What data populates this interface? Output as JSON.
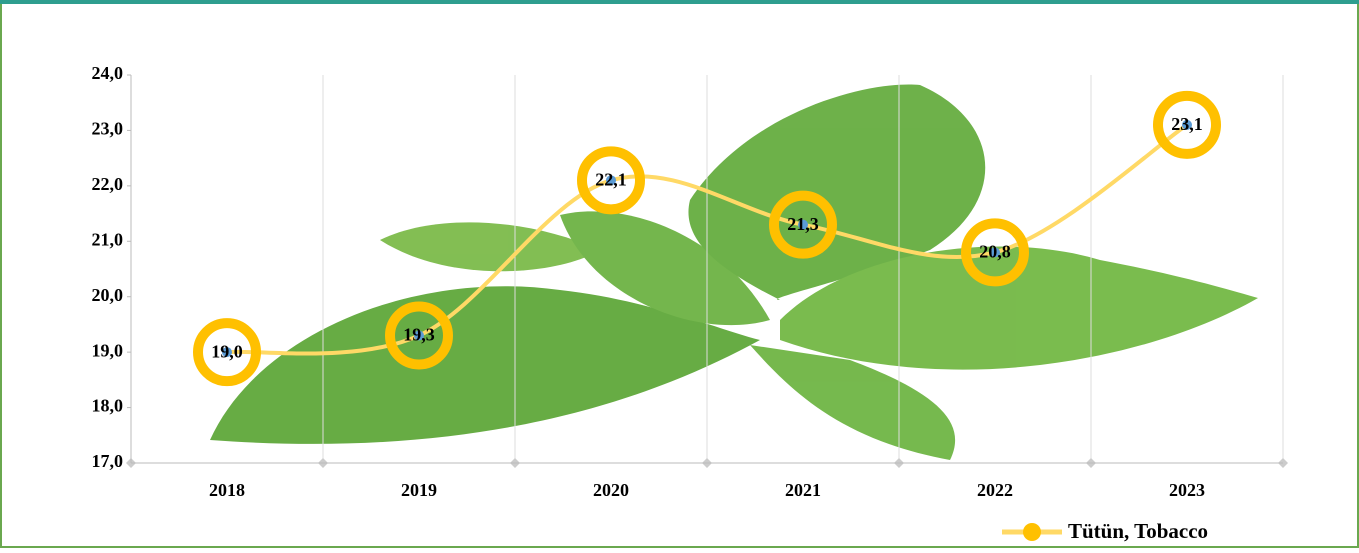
{
  "chart_data": {
    "type": "line",
    "categories": [
      "2018",
      "2019",
      "2020",
      "2021",
      "2022",
      "2023"
    ],
    "series": [
      {
        "name": "Tütün,  Tobacco",
        "color": "#ffc000",
        "line_color": "#ffd966",
        "values": [
          19.0,
          19.3,
          22.1,
          21.3,
          20.8,
          23.1
        ],
        "value_labels": [
          "19,0",
          "19,3",
          "22,1",
          "21,3",
          "20,8",
          "23,1"
        ]
      }
    ],
    "ylim": [
      17,
      24
    ],
    "yticks": [
      {
        "value": 17,
        "label": "17,0"
      },
      {
        "value": 18,
        "label": "18,0"
      },
      {
        "value": 19,
        "label": "19,0"
      },
      {
        "value": 20,
        "label": "20,0"
      },
      {
        "value": 21,
        "label": "21,0"
      },
      {
        "value": 22,
        "label": "22,0"
      },
      {
        "value": 23,
        "label": "23,0"
      },
      {
        "value": 24,
        "label": "24,0"
      }
    ],
    "grid": true,
    "legend": "bottom-right"
  }
}
